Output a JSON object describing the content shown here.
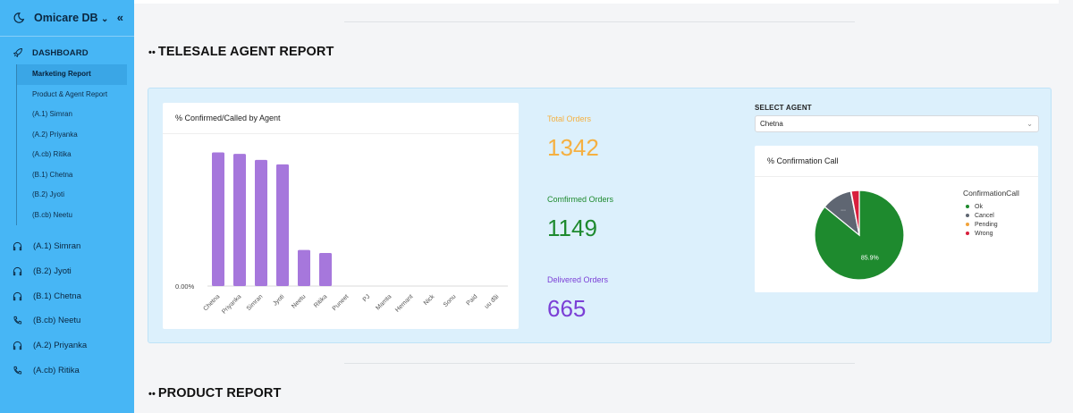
{
  "sidebar": {
    "brand": "Omicare DB",
    "brand_caret": "⌄",
    "collapse_glyph": "«",
    "dashboard_label": "DASHBOARD",
    "sub_items": [
      {
        "label": "Marketing Report",
        "active": true
      },
      {
        "label": "Product & Agent Report",
        "active": false
      },
      {
        "label": "(A.1) Simran",
        "active": false
      },
      {
        "label": "(A.2) Priyanka",
        "active": false
      },
      {
        "label": "(A.cb) Ritika",
        "active": false
      },
      {
        "label": "(B.1) Chetna",
        "active": false
      },
      {
        "label": "(B.2) Jyoti",
        "active": false
      },
      {
        "label": "(B.cb) Neetu",
        "active": false
      }
    ],
    "agents": [
      {
        "label": "(A.1) Simran",
        "icon": "headset-icon"
      },
      {
        "label": "(B.2) Jyoti",
        "icon": "headset-icon"
      },
      {
        "label": "(B.1) Chetna",
        "icon": "headset-icon"
      },
      {
        "label": "(B.cb) Neetu",
        "icon": "phone-icon"
      },
      {
        "label": "(A.2) Priyanka",
        "icon": "headset-icon"
      },
      {
        "label": "(A.cb) Ritika",
        "icon": "phone-icon"
      }
    ]
  },
  "sections": {
    "telesale_title": "TELESALE AGENT REPORT",
    "product_title": "PRODUCT REPORT",
    "dots": "••"
  },
  "bar_chart": {
    "header": "% Confirmed/Called by Agent"
  },
  "kpis": {
    "total_label": "Total Orders",
    "total_value": "1342",
    "confirmed_label": "Comfirmed Orders",
    "confirmed_value": "1149",
    "delivered_label": "Delivered Orders",
    "delivered_value": "665",
    "total_color": "#f5b041",
    "confirmed_color": "#1e8a2e",
    "delivered_color": "#7b3fd6"
  },
  "select_agent": {
    "label": "SELECT AGENT",
    "value": "Chetna",
    "chevron": "⌄"
  },
  "pie_chart": {
    "header": "% Confirmation Call"
  },
  "chart_data": [
    {
      "type": "bar",
      "title": "% Confirmed/Called by Agent",
      "categories": [
        "Chetna",
        "Priyanka",
        "Simran",
        "Jyoti",
        "Neetu",
        "Ritika",
        "Puneet",
        "PJ",
        "Mamta",
        "Hemant",
        "Nick",
        "Sonu",
        "Paid",
        "uu đãi"
      ],
      "values": [
        89,
        88,
        84,
        81,
        24,
        22,
        0,
        0,
        0,
        0,
        0,
        0,
        0,
        0
      ],
      "ytick_label": "0.00%",
      "ylim": [
        0,
        100
      ],
      "color": "#a677dc"
    },
    {
      "type": "pie",
      "title": "% Confirmation Call",
      "legend_title": "ConfirmationCall",
      "legend_position": "right",
      "slices": [
        {
          "label": "Ok",
          "value": 85.9,
          "color": "#1e8a2e",
          "display": "85.9%"
        },
        {
          "label": "Cancel",
          "value": 11.0,
          "color": "#5f6672",
          "display": "..."
        },
        {
          "label": "Pending",
          "value": 0.2,
          "color": "#f2a33a",
          "display": ""
        },
        {
          "label": "Wrong",
          "value": 2.9,
          "color": "#d81f3c",
          "display": ""
        }
      ]
    }
  ]
}
